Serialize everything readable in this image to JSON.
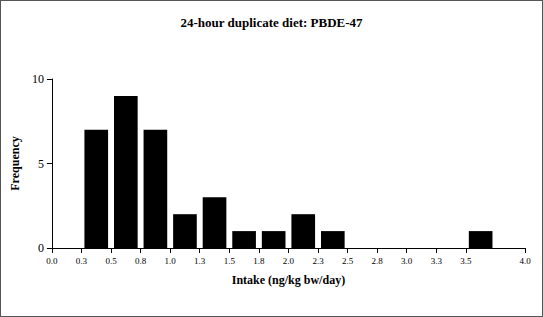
{
  "chart_data": {
    "type": "histogram",
    "title": "24-hour duplicate diet: PBDE-47",
    "x_label": "Intake (ng/kg bw/day)",
    "y_label": "Frequency",
    "bins": [
      0.25,
      0.5,
      0.75,
      1.0,
      1.25,
      1.5,
      1.75,
      2.0,
      2.25,
      2.5,
      2.75,
      3.0,
      3.25,
      3.5,
      3.75
    ],
    "values": [
      7,
      9,
      7,
      2,
      3,
      1,
      1,
      2,
      1,
      0,
      0,
      0,
      0,
      1
    ],
    "color": "#000000",
    "xlim": [
      0,
      4
    ],
    "xticks": [
      {
        "value": 0,
        "label": "0.0"
      },
      {
        "value": 0.25,
        "label": "0.3"
      },
      {
        "value": 0.5,
        "label": "0.5"
      },
      {
        "value": 0.75,
        "label": "0.8"
      },
      {
        "value": 1,
        "label": "1.0"
      },
      {
        "value": 1.25,
        "label": "1.3"
      },
      {
        "value": 1.5,
        "label": "1.5"
      },
      {
        "value": 1.75,
        "label": "1.8"
      },
      {
        "value": 2,
        "label": "2.0"
      },
      {
        "value": 2.25,
        "label": "2.3"
      },
      {
        "value": 2.5,
        "label": "2.5"
      },
      {
        "value": 2.75,
        "label": "2.8"
      },
      {
        "value": 3,
        "label": "3.0"
      },
      {
        "value": 3.25,
        "label": "3.3"
      },
      {
        "value": 3.5,
        "label": "3.5"
      },
      {
        "value": 4,
        "label": "4.0"
      }
    ],
    "ylim": [
      0,
      10
    ],
    "yticks": [
      0,
      5,
      10
    ],
    "grid": false
  }
}
